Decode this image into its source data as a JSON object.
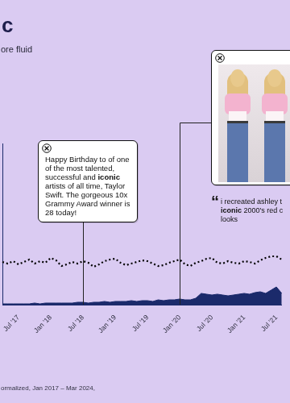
{
  "chart_data": {
    "type": "line",
    "title": "c",
    "subtitle": "ore fluid",
    "footnote": "ormalized, Jan 2017 – Mar 2024,",
    "categories": [
      null,
      null,
      null,
      "Jul '17",
      null,
      null,
      null,
      null,
      null,
      "Jan '18",
      null,
      null,
      null,
      null,
      null,
      "Jul '18",
      null,
      null,
      null,
      null,
      null,
      "Jan '19",
      null,
      null,
      null,
      null,
      null,
      "Jul '19",
      null,
      null,
      null,
      null,
      null,
      "Jan '20",
      null,
      null,
      null,
      null,
      null,
      "Jul '20",
      null,
      null,
      null,
      null,
      null,
      "Jan '21",
      null,
      null,
      null,
      null,
      null,
      "Jul '21",
      null
    ],
    "series": [
      {
        "type": "line",
        "color": "#000000",
        "line_style": "dotted",
        "values": [
          26.5,
          25.5,
          27,
          25,
          26.5,
          28,
          25.5,
          27,
          26,
          29,
          27.5,
          24,
          25,
          26.5,
          25.5,
          27,
          26,
          23.5,
          25,
          27,
          28,
          28.5,
          26,
          24.5,
          25.5,
          26.5,
          27.5,
          27,
          25.5,
          24,
          24.5,
          26,
          27,
          28,
          25,
          24,
          26,
          27,
          28.5,
          29,
          26,
          25.5,
          27,
          26,
          25.5,
          27,
          26.5,
          25.5,
          27.5,
          29,
          30,
          30,
          28
        ]
      },
      {
        "type": "area",
        "color": "#1b2a6b",
        "values": [
          0.5,
          0.5,
          0.5,
          0.5,
          0.5,
          0.5,
          1,
          0.5,
          1,
          1,
          1,
          1,
          1,
          1,
          1.5,
          1.5,
          1,
          1.5,
          1.5,
          2,
          1.5,
          2,
          2,
          2,
          2.5,
          2,
          2.5,
          2.5,
          2,
          3,
          2.5,
          3,
          3,
          3.5,
          3,
          3,
          4,
          7,
          6.5,
          6,
          6.5,
          6,
          5.5,
          6,
          6.5,
          7,
          6.5,
          7.5,
          8,
          7,
          9,
          11,
          7
        ]
      }
    ],
    "ylim": [
      0,
      100
    ],
    "grid": false,
    "tick_labels": "x",
    "annotations": [
      {
        "at": "Jul '18",
        "text": "Happy Birthday to of one of the most talented, successful and iconic artists of all time, Taylor Swift. The gorgeous 10x Grammy Award winner is 28 today!",
        "emphasis": "iconic"
      },
      {
        "at": "Jan '20",
        "quote_mark": "“",
        "lines": [
          "i recreated ashley t",
          "iconic 2000's red c",
          "looks"
        ],
        "emphasis": "iconic"
      }
    ]
  }
}
